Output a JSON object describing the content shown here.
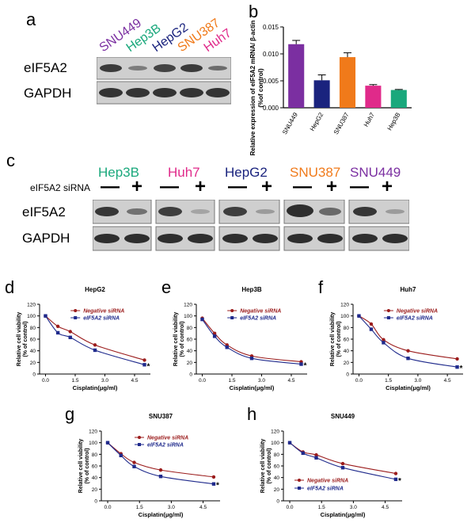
{
  "panel_a": {
    "letter": "a",
    "lanes": [
      {
        "name": "SNU449",
        "color": "#7b2fa1"
      },
      {
        "name": "Hep3B",
        "color": "#1aa87c"
      },
      {
        "name": "HepG2",
        "color": "#1a237e"
      },
      {
        "name": "SNU387",
        "color": "#f07a1a"
      },
      {
        "name": "Huh7",
        "color": "#e02a8a"
      }
    ],
    "rows": [
      "eIF5A2",
      "GAPDH"
    ]
  },
  "panel_c": {
    "letter": "c",
    "groups": [
      {
        "name": "Hep3B",
        "color": "#1aa87c"
      },
      {
        "name": "Huh7",
        "color": "#e02a8a"
      },
      {
        "name": "HepG2",
        "color": "#1a237e"
      },
      {
        "name": "SNU387",
        "color": "#f07a1a"
      },
      {
        "name": "SNU449",
        "color": "#7b2fa1"
      }
    ],
    "sirna_label": "eIF5A2 siRNA",
    "minus": "—",
    "plus": "+",
    "rows": [
      "eIF5A2",
      "GAPDH"
    ]
  },
  "chart_data": [
    {
      "id": "b",
      "letter": "b",
      "type": "bar",
      "categories": [
        "SNU449",
        "HepG2",
        "SNU387",
        "Huh7",
        "Hep3B"
      ],
      "values": [
        0.0118,
        0.0051,
        0.0094,
        0.0041,
        0.0033
      ],
      "errors": [
        0.0007,
        0.001,
        0.0008,
        0.0002,
        0.0001
      ],
      "colors": [
        "#7b2fa1",
        "#1a237e",
        "#f07a1a",
        "#e02a8a",
        "#1aa87c"
      ],
      "ylabel": "Relative expression of eIF5A2 mRNA/ β-actin (%of control)",
      "ylim": [
        0,
        0.015
      ],
      "yticks": [
        "0.000",
        "0.005",
        "0.010",
        "0.015"
      ]
    },
    {
      "id": "d",
      "letter": "d",
      "type": "line",
      "title": "HepG2",
      "xlabel": "Cisplatin(μg/ml)",
      "ylabel": "Relative cell viability (% of control)",
      "xticks": [
        "0.0",
        "1.5",
        "3.0",
        "4.5"
      ],
      "yticks": [
        "0",
        "20",
        "40",
        "60",
        "80",
        "100",
        "120"
      ],
      "xlim": [
        -0.3,
        5.3
      ],
      "ylim": [
        0,
        120
      ],
      "legend": "top-right",
      "star": "*",
      "series": [
        {
          "name": "Negative siRNA",
          "color": "#9b1c1c",
          "marker": "circle",
          "x": [
            0,
            0.625,
            1.25,
            2.5,
            5
          ],
          "y": [
            100,
            82,
            73,
            50,
            24
          ]
        },
        {
          "name": "eIF5A2 siRNA",
          "color": "#1f2a8c",
          "marker": "square",
          "x": [
            0,
            0.625,
            1.25,
            2.5,
            5
          ],
          "y": [
            100,
            71,
            63,
            41,
            16
          ]
        }
      ]
    },
    {
      "id": "e",
      "letter": "e",
      "type": "line",
      "title": "Hep3B",
      "xlabel": "Cisplatin(μg/ml)",
      "ylabel": "Relative cell viability (% of control)",
      "xticks": [
        "0.0",
        "1.5",
        "3.0",
        "4.5"
      ],
      "yticks": [
        "0",
        "20",
        "40",
        "60",
        "80",
        "100",
        "120"
      ],
      "xlim": [
        -0.3,
        5.3
      ],
      "ylim": [
        0,
        120
      ],
      "legend": "top-right",
      "star": "*",
      "series": [
        {
          "name": "Negative siRNA",
          "color": "#9b1c1c",
          "marker": "circle",
          "x": [
            0,
            0.625,
            1.25,
            2.5,
            5
          ],
          "y": [
            96,
            70,
            50,
            31,
            21
          ]
        },
        {
          "name": "eIF5A2 siRNA",
          "color": "#1f2a8c",
          "marker": "square",
          "x": [
            0,
            0.625,
            1.25,
            2.5,
            5
          ],
          "y": [
            94,
            65,
            46,
            27,
            17
          ]
        }
      ]
    },
    {
      "id": "f",
      "letter": "f",
      "type": "line",
      "title": "Huh7",
      "xlabel": "Cisplatin(μg/ml)",
      "ylabel": "Relative cell viability (% of control)",
      "xticks": [
        "0.0",
        "1.5",
        "3.0",
        "4.5"
      ],
      "yticks": [
        "0",
        "20",
        "40",
        "60",
        "80",
        "100",
        "120"
      ],
      "xlim": [
        -0.3,
        5.3
      ],
      "ylim": [
        0,
        120
      ],
      "legend": "top-right",
      "star": "*",
      "series": [
        {
          "name": "Negative siRNA",
          "color": "#9b1c1c",
          "marker": "circle",
          "x": [
            0,
            0.625,
            1.25,
            2.5,
            5
          ],
          "y": [
            100,
            86,
            59,
            40,
            26
          ]
        },
        {
          "name": "eIF5A2 siRNA",
          "color": "#1f2a8c",
          "marker": "square",
          "x": [
            0,
            0.625,
            1.25,
            2.5,
            5
          ],
          "y": [
            100,
            77,
            54,
            27,
            12
          ]
        }
      ]
    },
    {
      "id": "g",
      "letter": "g",
      "type": "line",
      "title": "SNU387",
      "xlabel": "Cisplatin(μg/ml)",
      "ylabel": "Relative cell viability (% of control)",
      "xticks": [
        "0.0",
        "1.5",
        "3.0",
        "4.5"
      ],
      "yticks": [
        "0",
        "20",
        "40",
        "60",
        "80",
        "100",
        "120"
      ],
      "xlim": [
        -0.3,
        5.3
      ],
      "ylim": [
        0,
        120
      ],
      "legend": "top-right",
      "star": "*",
      "series": [
        {
          "name": "Negative siRNA",
          "color": "#9b1c1c",
          "marker": "circle",
          "x": [
            0,
            0.625,
            1.25,
            2.5,
            5
          ],
          "y": [
            100,
            81,
            66,
            53,
            41
          ]
        },
        {
          "name": "eIF5A2 siRNA",
          "color": "#1f2a8c",
          "marker": "square",
          "x": [
            0,
            0.625,
            1.25,
            2.5,
            5
          ],
          "y": [
            100,
            78,
            59,
            42,
            29
          ]
        }
      ]
    },
    {
      "id": "h",
      "letter": "h",
      "type": "line",
      "title": "SNU449",
      "xlabel": "Cisplatin(μg/ml)",
      "ylabel": "Relative cell viability (% of control)",
      "xticks": [
        "0.0",
        "1.5",
        "3.0",
        "4.5"
      ],
      "yticks": [
        "0",
        "20",
        "40",
        "60",
        "80",
        "100",
        "120"
      ],
      "xlim": [
        -0.3,
        5.3
      ],
      "ylim": [
        0,
        120
      ],
      "legend": "bottom-left",
      "star": "*",
      "series": [
        {
          "name": "Negative siRNA",
          "color": "#9b1c1c",
          "marker": "circle",
          "x": [
            0,
            0.625,
            1.25,
            2.5,
            5
          ],
          "y": [
            100,
            84,
            79,
            64,
            47
          ]
        },
        {
          "name": "eIF5A2 siRNA",
          "color": "#1f2a8c",
          "marker": "square",
          "x": [
            0,
            0.625,
            1.25,
            2.5,
            5
          ],
          "y": [
            100,
            82,
            74,
            57,
            37
          ]
        }
      ]
    }
  ]
}
